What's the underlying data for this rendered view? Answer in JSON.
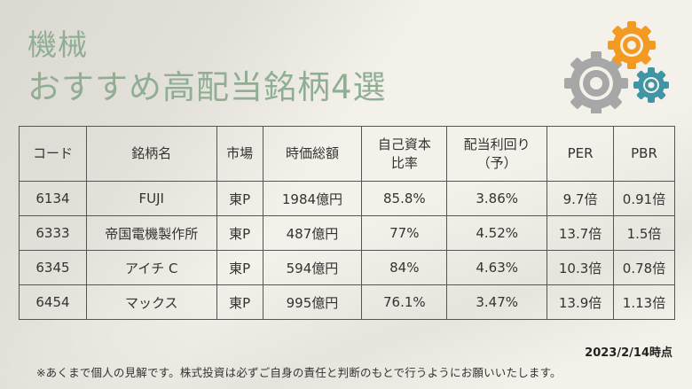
{
  "title": {
    "line1": "機械",
    "line2": "おすすめ高配当銘柄4選"
  },
  "icons": {
    "gears": "gears-icon"
  },
  "colors": {
    "title": "#8fae94",
    "gear_orange": "#f29a21",
    "gear_gray": "#a7a7a7",
    "gear_teal": "#3f95a3"
  },
  "table": {
    "headers": [
      "コード",
      "銘柄名",
      "市場",
      "時価総額",
      "自己資本\n比率",
      "配当利回り\n（予）",
      "PER",
      "PBR"
    ],
    "rows": [
      [
        "6134",
        "FUJI",
        "東P",
        "1984億円",
        "85.8%",
        "3.86%",
        "9.7倍",
        "0.91倍"
      ],
      [
        "6333",
        "帝国電機製作所",
        "東P",
        "487億円",
        "77%",
        "4.52%",
        "13.7倍",
        "1.5倍"
      ],
      [
        "6345",
        "アイチ C",
        "東P",
        "594億円",
        "84%",
        "4.63%",
        "10.3倍",
        "0.78倍"
      ],
      [
        "6454",
        "マックス",
        "東P",
        "995億円",
        "76.1%",
        "3.47%",
        "13.9倍",
        "1.13倍"
      ]
    ]
  },
  "footer": {
    "as_of": "2023/2/14時点",
    "disclaimer": "※あくまで個人の見解です。株式投資は必ずご自身の責任と判断のもとで行うようにお願いいたします。"
  }
}
